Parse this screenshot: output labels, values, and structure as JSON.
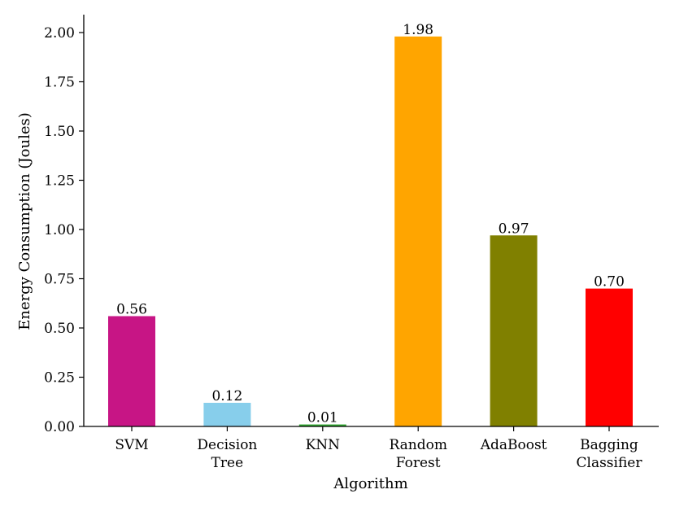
{
  "chart_data": {
    "type": "bar",
    "title": "",
    "xlabel": "Algorithm",
    "ylabel": "Energy Consumption (Joules)",
    "ylim": [
      0,
      2.0
    ],
    "yticks": [
      "0.00",
      "0.25",
      "0.50",
      "0.75",
      "1.00",
      "1.25",
      "1.50",
      "1.75",
      "2.00"
    ],
    "grid": false,
    "categories": [
      {
        "lines": [
          "SVM"
        ],
        "value": 0.56,
        "label": "0.56",
        "color": "#c71585"
      },
      {
        "lines": [
          "Decision",
          "Tree"
        ],
        "value": 0.12,
        "label": "0.12",
        "color": "#87ceeb"
      },
      {
        "lines": [
          "KNN"
        ],
        "value": 0.01,
        "label": "0.01",
        "color": "#32a832"
      },
      {
        "lines": [
          "Random",
          "Forest"
        ],
        "value": 1.98,
        "label": "1.98",
        "color": "#ffa500"
      },
      {
        "lines": [
          "AdaBoost"
        ],
        "value": 0.97,
        "label": "0.97",
        "color": "#808000"
      },
      {
        "lines": [
          "Bagging",
          "Classifier"
        ],
        "value": 0.7,
        "label": "0.70",
        "color": "#ff0000"
      }
    ]
  }
}
